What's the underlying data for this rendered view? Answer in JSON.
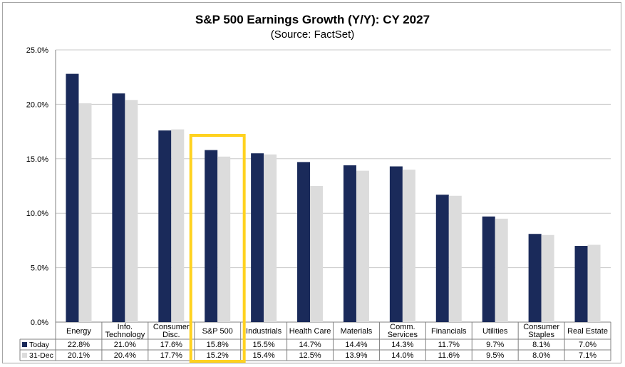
{
  "chart_data": {
    "type": "bar",
    "title": "S&P 500 Earnings Growth (Y/Y): CY 2027",
    "subtitle": "(Source: FactSet)",
    "categories": [
      [
        "Energy"
      ],
      [
        "Info.",
        "Technology"
      ],
      [
        "Consumer",
        "Disc."
      ],
      [
        "S&P 500"
      ],
      [
        "Industrials"
      ],
      [
        "Health Care"
      ],
      [
        "Materials"
      ],
      [
        "Comm.",
        "Services"
      ],
      [
        "Financials"
      ],
      [
        "Utilities"
      ],
      [
        "Consumer",
        "Staples"
      ],
      [
        "Real Estate"
      ]
    ],
    "series": [
      {
        "name": "Today",
        "color": "#1a2a5a",
        "values": [
          22.8,
          21.0,
          17.6,
          15.8,
          15.5,
          14.7,
          14.4,
          14.3,
          11.7,
          9.7,
          8.1,
          7.0
        ]
      },
      {
        "name": "31-Dec",
        "color": "#dcdcdc",
        "values": [
          20.1,
          20.4,
          17.7,
          15.2,
          15.4,
          12.5,
          13.9,
          14.0,
          11.6,
          9.5,
          8.0,
          7.1
        ]
      }
    ],
    "ylim": [
      0,
      25
    ],
    "yticks": [
      0,
      5,
      10,
      15,
      20,
      25
    ],
    "ytick_format": "percent_1dp",
    "grid": true,
    "highlight_category_index": 3,
    "highlight_color": "#ffd21f",
    "legend": "data-table-below"
  }
}
